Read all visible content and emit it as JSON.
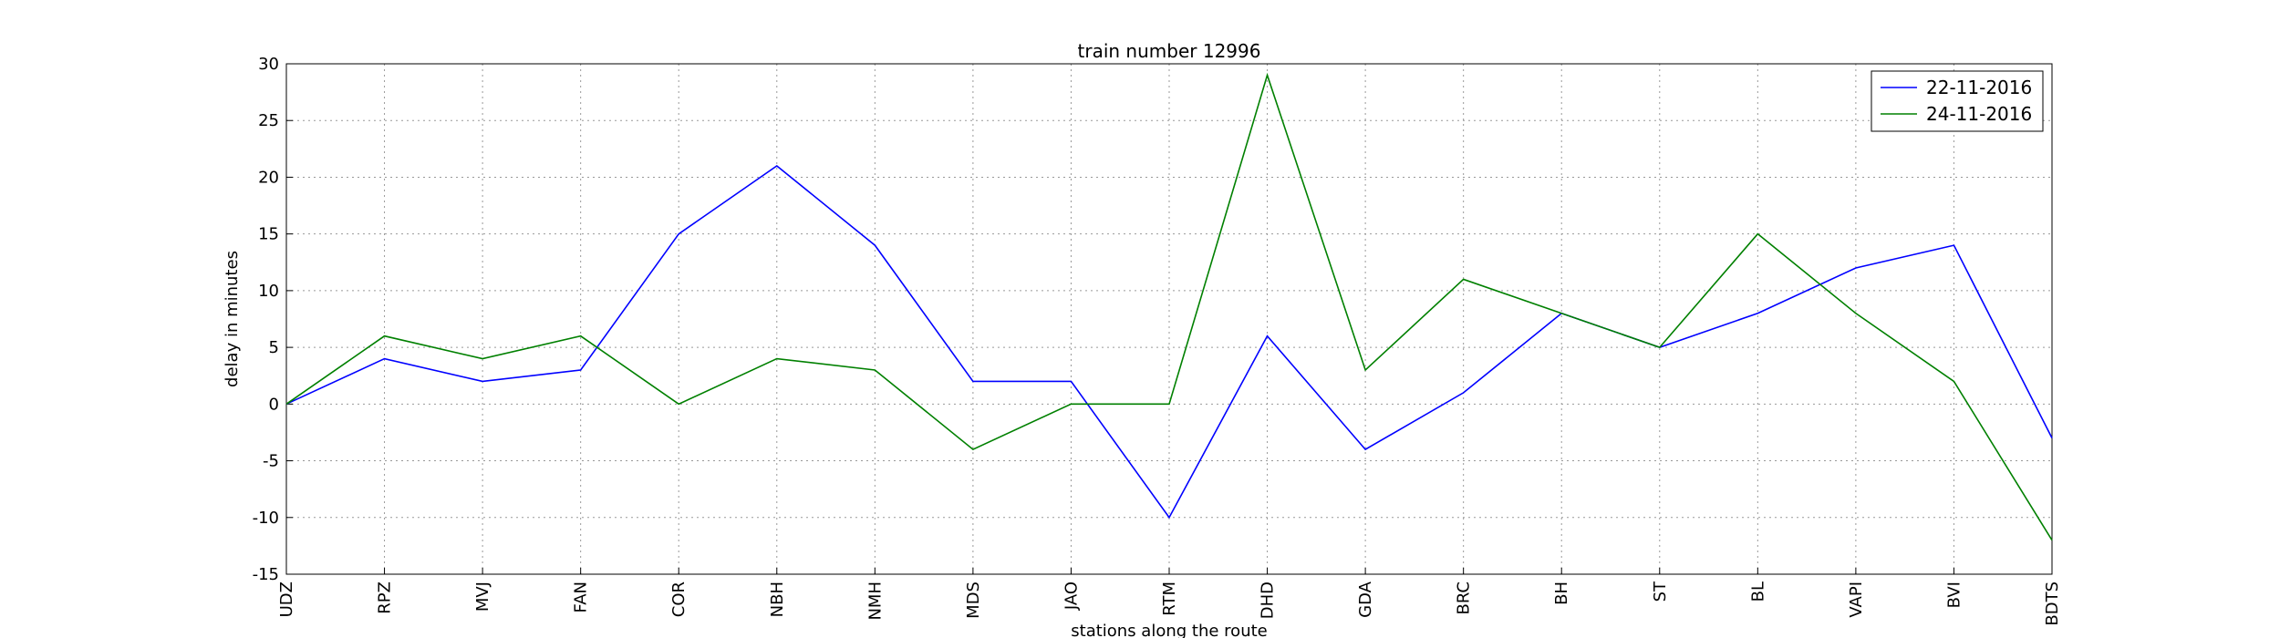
{
  "chart_data": {
    "type": "line",
    "title": "train number 12996",
    "x_label": "stations along the route",
    "y_label": "delay in minutes",
    "categories": [
      "UDZ",
      "RPZ",
      "MVJ",
      "FAN",
      "COR",
      "NBH",
      "NMH",
      "MDS",
      "JAO",
      "RTM",
      "DHD",
      "GDA",
      "BRC",
      "BH",
      "ST",
      "BL",
      "VAPI",
      "BVI",
      "BDTS"
    ],
    "series": [
      {
        "name": "22-11-2016",
        "color": "#0000ff",
        "values": [
          0,
          4,
          2,
          3,
          15,
          21,
          14,
          2,
          2,
          -10,
          6,
          -4,
          1,
          8,
          5,
          8,
          12,
          14,
          -3
        ]
      },
      {
        "name": "24-11-2016",
        "color": "#008000",
        "values": [
          0,
          6,
          4,
          6,
          0,
          4,
          3,
          -4,
          0,
          0,
          29,
          3,
          11,
          8,
          5,
          15,
          8,
          2,
          -12
        ]
      }
    ],
    "ylim": [
      -15,
      30
    ],
    "yticks": [
      -15,
      -10,
      -5,
      0,
      5,
      10,
      15,
      20,
      25,
      30
    ],
    "grid": true,
    "legend": "upper right"
  }
}
